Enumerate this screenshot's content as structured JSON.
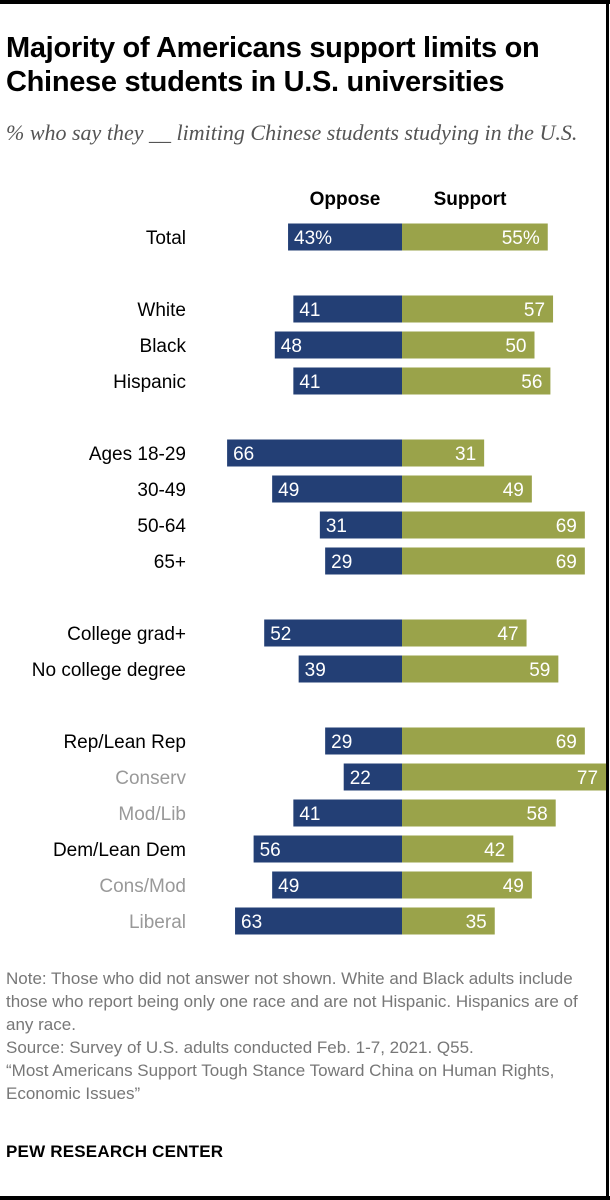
{
  "title": "Majority of Americans support limits on Chinese students in U.S. universities",
  "subtitle": "% who say they __ limiting Chinese students studying in the U.S.",
  "note": "Note: Those who did not answer not shown. White and Black adults include those who report being only one race and are not Hispanic. Hispanics are of any race.",
  "source": "Source: Survey of U.S. adults conducted Feb. 1-7, 2021. Q55.",
  "report": "“Most Americans Support Tough Stance Toward China on Human Rights, Economic Issues”",
  "brand": "PEW RESEARCH CENTER",
  "colors": {
    "oppose": "#233f75",
    "support": "#9aa34a",
    "label": "#000000",
    "sublabel": "#999999"
  },
  "chart_data": {
    "type": "bar",
    "orientation": "horizontal-diverging",
    "series": [
      {
        "name": "Oppose",
        "color": "#233f75"
      },
      {
        "name": "Support",
        "color": "#9aa34a"
      }
    ],
    "rows": [
      {
        "label": "Total",
        "oppose": 43,
        "support": 55,
        "oppose_text": "43%",
        "support_text": "55%",
        "group": 0,
        "style": "main"
      },
      {
        "label": "White",
        "oppose": 41,
        "support": 57,
        "oppose_text": "41",
        "support_text": "57",
        "group": 1,
        "style": "main"
      },
      {
        "label": "Black",
        "oppose": 48,
        "support": 50,
        "oppose_text": "48",
        "support_text": "50",
        "group": 1,
        "style": "main"
      },
      {
        "label": "Hispanic",
        "oppose": 41,
        "support": 56,
        "oppose_text": "41",
        "support_text": "56",
        "group": 1,
        "style": "main"
      },
      {
        "label": "Ages 18-29",
        "oppose": 66,
        "support": 31,
        "oppose_text": "66",
        "support_text": "31",
        "group": 2,
        "style": "main"
      },
      {
        "label": "30-49",
        "oppose": 49,
        "support": 49,
        "oppose_text": "49",
        "support_text": "49",
        "group": 2,
        "style": "main"
      },
      {
        "label": "50-64",
        "oppose": 31,
        "support": 69,
        "oppose_text": "31",
        "support_text": "69",
        "group": 2,
        "style": "main"
      },
      {
        "label": "65+",
        "oppose": 29,
        "support": 69,
        "oppose_text": "29",
        "support_text": "69",
        "group": 2,
        "style": "main"
      },
      {
        "label": "College grad+",
        "oppose": 52,
        "support": 47,
        "oppose_text": "52",
        "support_text": "47",
        "group": 3,
        "style": "main"
      },
      {
        "label": "No college degree",
        "oppose": 39,
        "support": 59,
        "oppose_text": "39",
        "support_text": "59",
        "group": 3,
        "style": "main"
      },
      {
        "label": "Rep/Lean Rep",
        "oppose": 29,
        "support": 69,
        "oppose_text": "29",
        "support_text": "69",
        "group": 4,
        "style": "main"
      },
      {
        "label": "Conserv",
        "oppose": 22,
        "support": 77,
        "oppose_text": "22",
        "support_text": "77",
        "group": 4,
        "style": "sub"
      },
      {
        "label": "Mod/Lib",
        "oppose": 41,
        "support": 58,
        "oppose_text": "41",
        "support_text": "58",
        "group": 4,
        "style": "sub"
      },
      {
        "label": "Dem/Lean Dem",
        "oppose": 56,
        "support": 42,
        "oppose_text": "56",
        "support_text": "42",
        "group": 4,
        "style": "main"
      },
      {
        "label": "Cons/Mod",
        "oppose": 49,
        "support": 49,
        "oppose_text": "49",
        "support_text": "49",
        "group": 4,
        "style": "sub"
      },
      {
        "label": "Liberal",
        "oppose": 63,
        "support": 35,
        "oppose_text": "63",
        "support_text": "35",
        "group": 4,
        "style": "sub"
      }
    ],
    "xlim": [
      -100,
      100
    ],
    "grid": false,
    "legend": "top"
  }
}
